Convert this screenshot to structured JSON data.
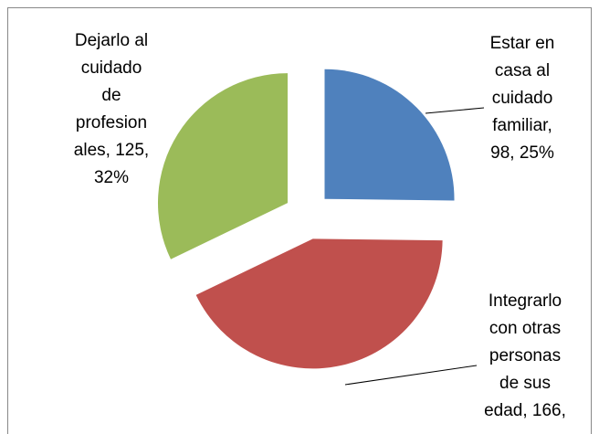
{
  "chart_data": {
    "type": "pie",
    "values": [
      98,
      166,
      125
    ],
    "value_labels": [
      [
        "Estar en",
        "casa al",
        "cuidado",
        "familiar,",
        "98, 25%"
      ],
      [
        "Integrarlo",
        "con otras",
        "personas",
        "de sus",
        "edad, 166,"
      ],
      [
        "Dejarlo al",
        "cuidado",
        "de",
        "profesion",
        "ales, 125,",
        "32%"
      ]
    ],
    "colors": [
      "#4f81bd",
      "#c0504d",
      "#9bbb59"
    ]
  }
}
